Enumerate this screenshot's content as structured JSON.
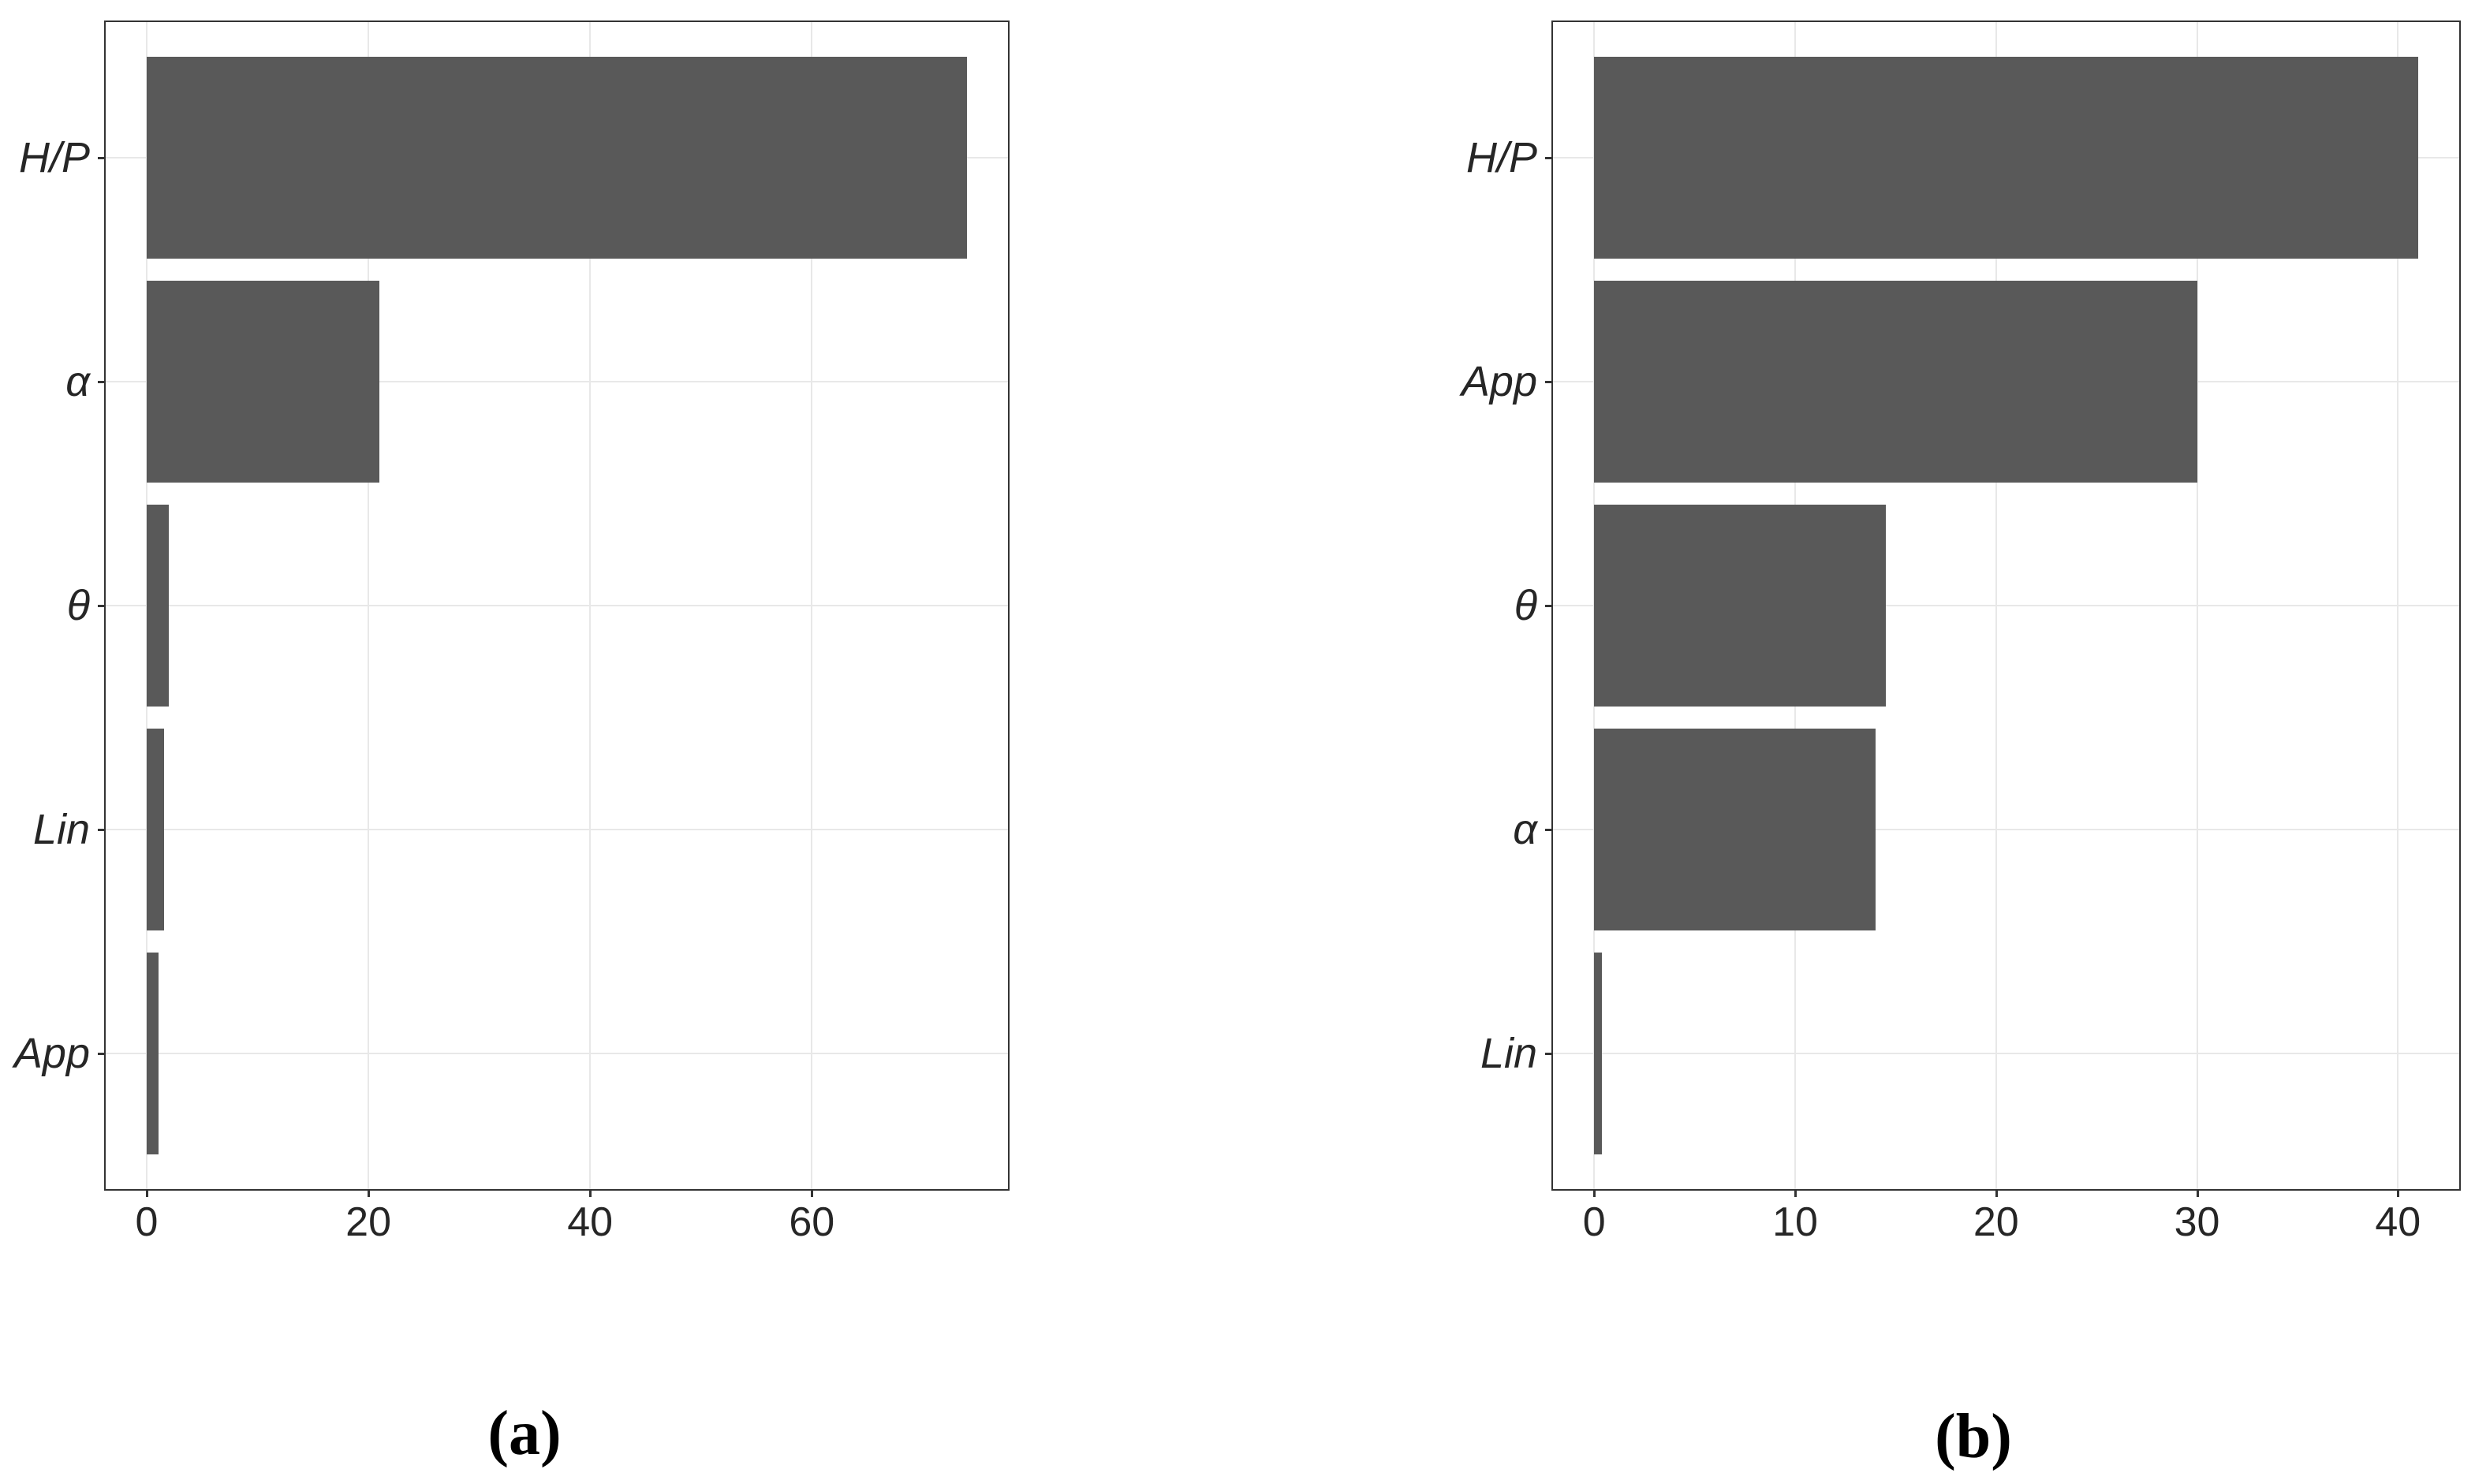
{
  "figure": {
    "description": "Two horizontal bar charts of variable importance, side by side, labeled (a) and (b)",
    "background": "#ffffff"
  },
  "colors": {
    "bar": "#595959",
    "panel_border": "#333333",
    "gridline": "#e8e8e8",
    "tick_mark": "#333333",
    "axis_text": "#262626",
    "caption_text": "#000000"
  },
  "chart_data": [
    {
      "id": "a",
      "type": "bar",
      "orientation": "horizontal",
      "caption": "(a)",
      "title": "",
      "xlabel": "",
      "ylabel": "",
      "categories": [
        "H/P",
        "α",
        "θ",
        "Lin",
        "App"
      ],
      "values": [
        74,
        21,
        2,
        1.6,
        1.1
      ],
      "x_ticks": [
        "0",
        "20",
        "40",
        "60"
      ],
      "x_tick_values": [
        0,
        20,
        40,
        60
      ],
      "xlim": [
        -3.7,
        77.7
      ],
      "grid": "major-vertical-and-category-lines",
      "legend": "none",
      "bar_width_fraction": 0.9
    },
    {
      "id": "b",
      "type": "bar",
      "orientation": "horizontal",
      "caption": "(b)",
      "title": "",
      "xlabel": "",
      "ylabel": "",
      "categories": [
        "H/P",
        "App",
        "θ",
        "α",
        "Lin"
      ],
      "values": [
        41,
        30,
        14.5,
        14,
        0.4
      ],
      "x_ticks": [
        "0",
        "10",
        "20",
        "30",
        "40"
      ],
      "x_tick_values": [
        0,
        10,
        20,
        30,
        40
      ],
      "xlim": [
        -2.05,
        43.05
      ],
      "grid": "major-vertical-and-category-lines",
      "legend": "none",
      "bar_width_fraction": 0.9
    }
  ]
}
